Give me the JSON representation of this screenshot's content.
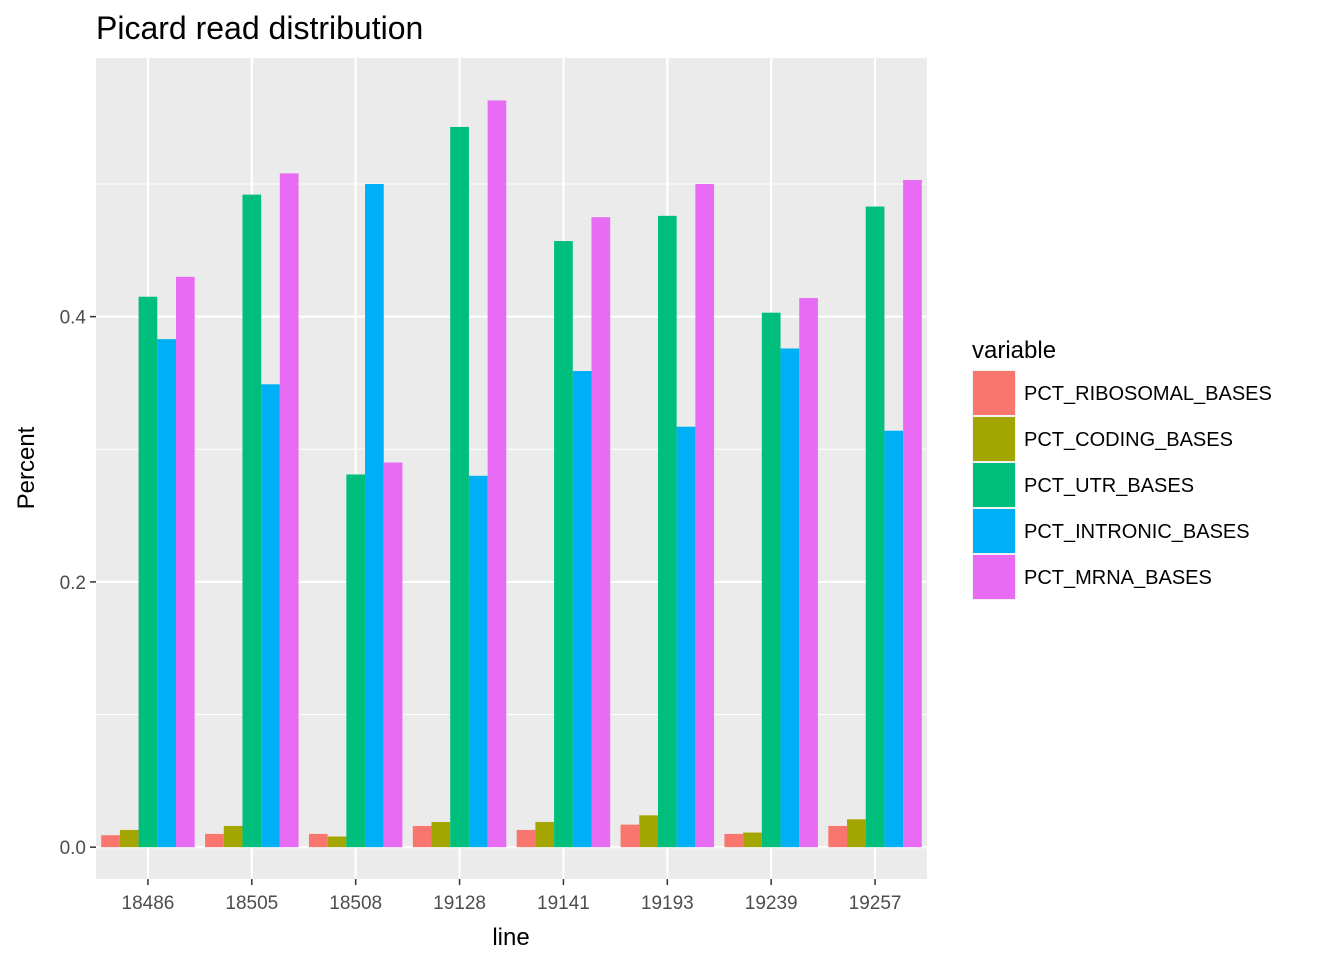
{
  "chart_data": {
    "type": "bar",
    "title": "Picard read distribution",
    "xlabel": "line",
    "ylabel": "Percent",
    "categories": [
      "18486",
      "18505",
      "18508",
      "19128",
      "19141",
      "19193",
      "19239",
      "19257"
    ],
    "y_ticks": [
      0.0,
      0.2,
      0.4
    ],
    "y_tick_labels": [
      "0.0",
      "0.2",
      "0.4"
    ],
    "ylim": [
      -0.024,
      0.595
    ],
    "grid": true,
    "legend": {
      "title": "variable",
      "position": "right"
    },
    "series": [
      {
        "name": "PCT_RIBOSOMAL_BASES",
        "color": "#F8766D",
        "values": [
          0.009,
          0.01,
          0.01,
          0.016,
          0.013,
          0.017,
          0.01,
          0.016
        ]
      },
      {
        "name": "PCT_CODING_BASES",
        "color": "#A3A500",
        "values": [
          0.013,
          0.016,
          0.008,
          0.019,
          0.019,
          0.024,
          0.011,
          0.021
        ]
      },
      {
        "name": "PCT_UTR_BASES",
        "color": "#00BF7D",
        "values": [
          0.415,
          0.492,
          0.281,
          0.543,
          0.457,
          0.476,
          0.403,
          0.483
        ]
      },
      {
        "name": "PCT_INTRONIC_BASES",
        "color": "#00B0F6",
        "values": [
          0.383,
          0.349,
          0.5,
          0.28,
          0.359,
          0.317,
          0.376,
          0.314
        ]
      },
      {
        "name": "PCT_MRNA_BASES",
        "color": "#E76BF3",
        "values": [
          0.43,
          0.508,
          0.29,
          0.563,
          0.475,
          0.5,
          0.414,
          0.503
        ]
      }
    ]
  }
}
